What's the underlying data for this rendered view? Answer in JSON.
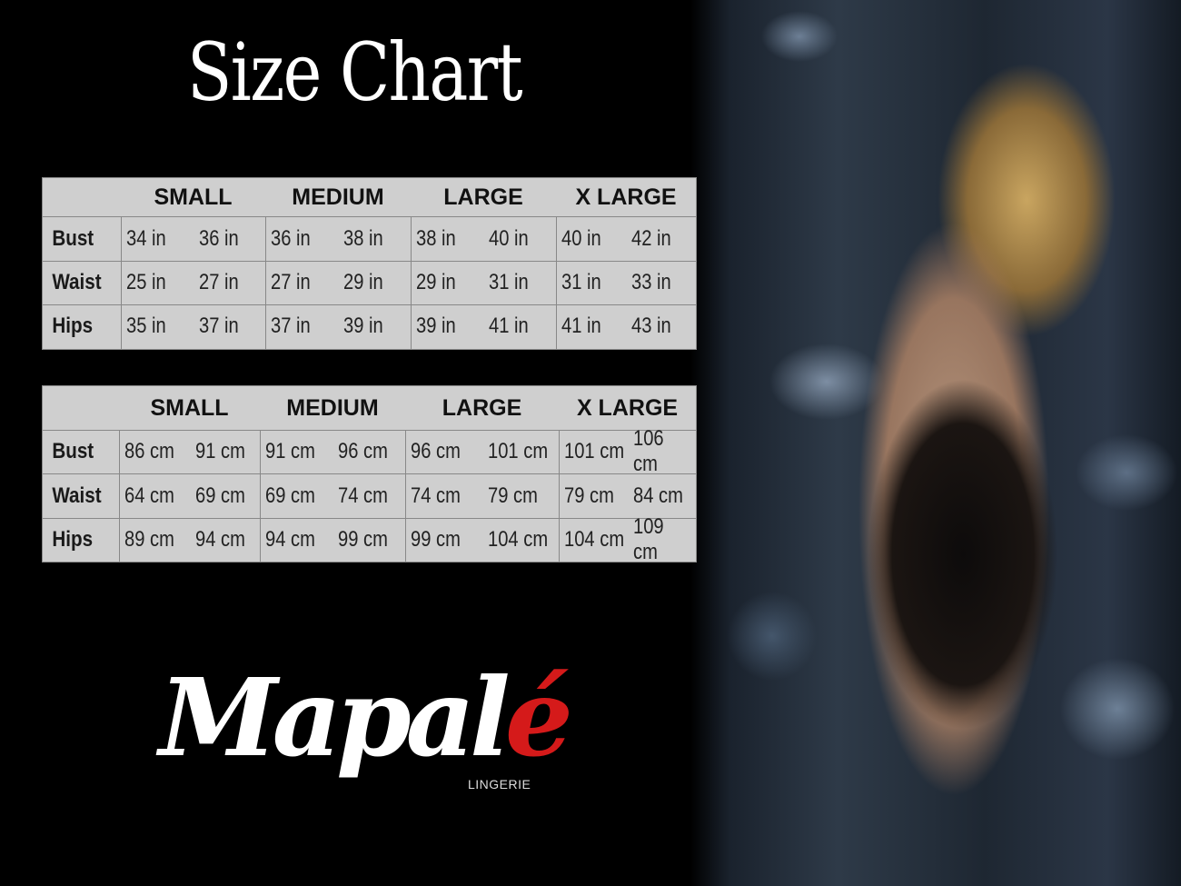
{
  "title": "Size Chart",
  "sizes": [
    "SMALL",
    "MEDIUM",
    "LARGE",
    "X LARGE"
  ],
  "tables": [
    {
      "unit": "in",
      "rows": [
        {
          "label": "Bust",
          "values": [
            "34 in",
            "36 in",
            "36 in",
            "38 in",
            "38 in",
            "40 in",
            "40 in",
            "42 in"
          ]
        },
        {
          "label": "Waist",
          "values": [
            "25 in",
            "27 in",
            "27 in",
            "29 in",
            "29 in",
            "31 in",
            "31 in",
            "33 in"
          ]
        },
        {
          "label": "Hips",
          "values": [
            "35 in",
            "37 in",
            "37 in",
            "39 in",
            "39 in",
            "41 in",
            "41 in",
            "43 in"
          ]
        }
      ]
    },
    {
      "unit": "cm",
      "rows": [
        {
          "label": "Bust",
          "values": [
            "86 cm",
            "91 cm",
            "91 cm",
            "96 cm",
            "96 cm",
            "101 cm",
            "101 cm",
            "106 cm"
          ]
        },
        {
          "label": "Waist",
          "values": [
            "64 cm",
            "69 cm",
            "69 cm",
            "74 cm",
            "74 cm",
            "79  cm",
            "79 cm",
            "84 cm"
          ]
        },
        {
          "label": "Hips",
          "values": [
            "89 cm",
            "94 cm",
            "94 cm",
            "99 cm",
            "99 cm",
            "104 cm",
            "104 cm",
            "109 cm"
          ]
        }
      ]
    }
  ],
  "logo": {
    "text_main": "Mapal",
    "text_accent": "é",
    "tagline": "LINGERIE"
  },
  "colors": {
    "background": "#000000",
    "table": "#cfcfcf",
    "logo_accent": "#d51a1a"
  }
}
